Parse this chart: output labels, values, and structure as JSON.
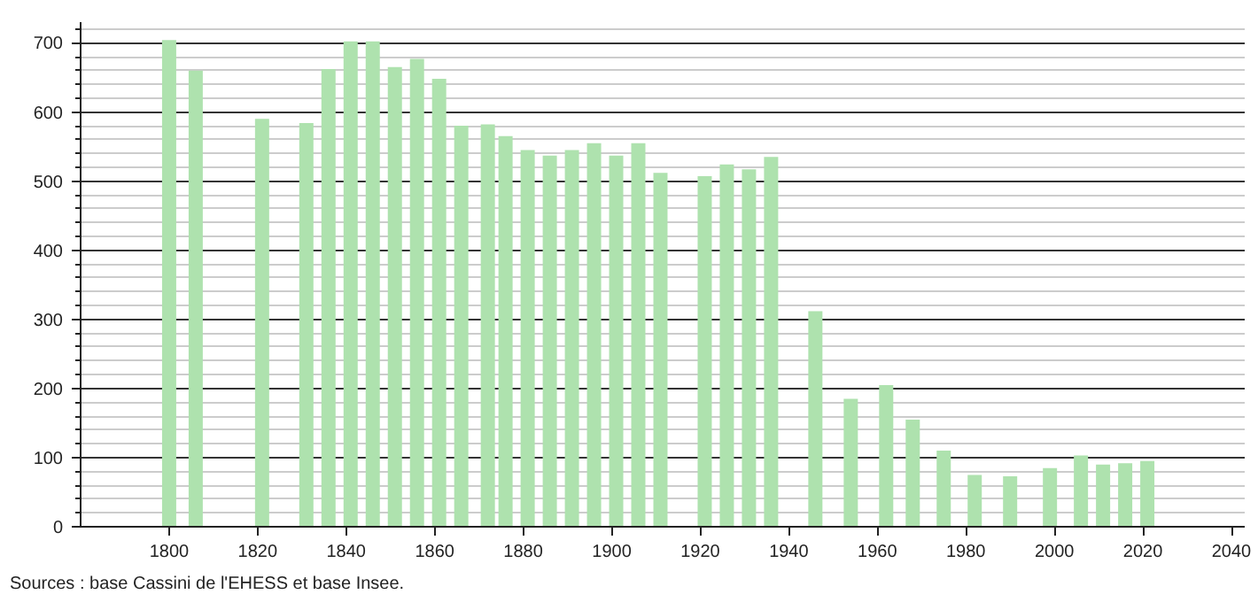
{
  "chart_data": {
    "type": "bar",
    "x": [
      1800,
      1806,
      1821,
      1831,
      1836,
      1841,
      1846,
      1851,
      1856,
      1861,
      1866,
      1872,
      1876,
      1881,
      1886,
      1891,
      1896,
      1901,
      1906,
      1911,
      1921,
      1926,
      1931,
      1936,
      1946,
      1954,
      1962,
      1968,
      1975,
      1982,
      1990,
      1999,
      2006,
      2011,
      2016,
      2021
    ],
    "values": [
      704,
      660,
      590,
      584,
      662,
      702,
      702,
      665,
      677,
      648,
      580,
      582,
      565,
      545,
      537,
      545,
      555,
      537,
      555,
      512,
      507,
      524,
      517,
      535,
      312,
      185,
      205,
      155,
      110,
      75,
      73,
      85,
      103,
      90,
      92,
      95
    ],
    "color": "#aee2ae",
    "xlim": [
      1780,
      2043
    ],
    "ylim": [
      0,
      730
    ],
    "xticks": [
      1800,
      1820,
      1840,
      1860,
      1880,
      1900,
      1920,
      1940,
      1960,
      1980,
      2000,
      2020,
      2040
    ],
    "yticks": [
      0,
      {
        "value": 20,
        "label": null
      },
      {
        "value": 40,
        "label": null
      },
      {
        "value": 60,
        "label": null
      },
      {
        "value": 80,
        "label": null
      },
      100,
      {
        "value": 120,
        "label": null
      },
      {
        "value": 140,
        "label": null
      },
      {
        "value": 160,
        "label": null
      },
      {
        "value": 180,
        "label": null
      },
      200,
      {
        "value": 220,
        "label": null
      },
      {
        "value": 240,
        "label": null
      },
      {
        "value": 260,
        "label": null
      },
      {
        "value": 280,
        "label": null
      },
      300,
      {
        "value": 320,
        "label": null
      },
      {
        "value": 340,
        "label": null
      },
      {
        "value": 360,
        "label": null
      },
      {
        "value": 380,
        "label": null
      },
      400,
      {
        "value": 420,
        "label": null
      },
      {
        "value": 440,
        "label": null
      },
      {
        "value": 460,
        "label": null
      },
      {
        "value": 480,
        "label": null
      },
      500,
      {
        "value": 520,
        "label": null
      },
      {
        "value": 540,
        "label": null
      },
      {
        "value": 560,
        "label": null
      },
      {
        "value": 580,
        "label": null
      },
      600,
      {
        "value": 620,
        "label": null
      },
      {
        "value": 640,
        "label": null
      },
      {
        "value": 660,
        "label": null
      },
      {
        "value": 680,
        "label": null
      },
      700,
      {
        "value": 720,
        "label": null
      }
    ],
    "grid": "y",
    "annotations": [
      "Sources : base Cassini de l'EHESS et base Insee."
    ]
  }
}
